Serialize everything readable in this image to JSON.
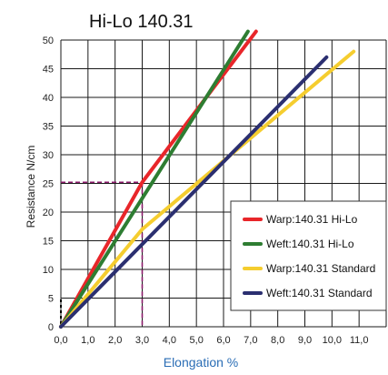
{
  "chart_data": {
    "type": "line",
    "title": "Hi-Lo 140.31",
    "xlabel": "Elongation %",
    "ylabel": "Resistance N/cm",
    "xlim": [
      0,
      12
    ],
    "ylim": [
      0,
      50
    ],
    "x_ticks": [
      "0,0",
      "1,0",
      "2,0",
      "3,0",
      "4,0",
      "5,0",
      "6,0",
      "7,0",
      "8,0",
      "9,0",
      "10,0",
      "11,0"
    ],
    "y_ticks": [
      "0",
      "5",
      "10",
      "15",
      "20",
      "25",
      "30",
      "35",
      "40",
      "45",
      "50"
    ],
    "grid": true,
    "legend_position": "bottom-right",
    "series": [
      {
        "name": "Warp:140.31 Hi-Lo",
        "color": "#e8262a",
        "x": [
          0,
          3.0,
          7.2
        ],
        "y": [
          0,
          25.2,
          51.5
        ]
      },
      {
        "name": "Weft:140.31 Hi-Lo",
        "color": "#2e7d32",
        "x": [
          0,
          6.9
        ],
        "y": [
          0,
          51.5
        ]
      },
      {
        "name": "Warp:140.31 Standard",
        "color": "#f5cd2f",
        "x": [
          0,
          3.0,
          10.8
        ],
        "y": [
          0,
          17.0,
          48.0
        ]
      },
      {
        "name": "Weft:140.31 Standard",
        "color": "#2b2f70",
        "x": [
          0,
          9.8
        ],
        "y": [
          0,
          47.0
        ]
      }
    ],
    "annotations": [
      {
        "type": "dashed-crosshair",
        "x": 3.0,
        "y": 25.2,
        "color": "#8b1a6b"
      }
    ]
  }
}
